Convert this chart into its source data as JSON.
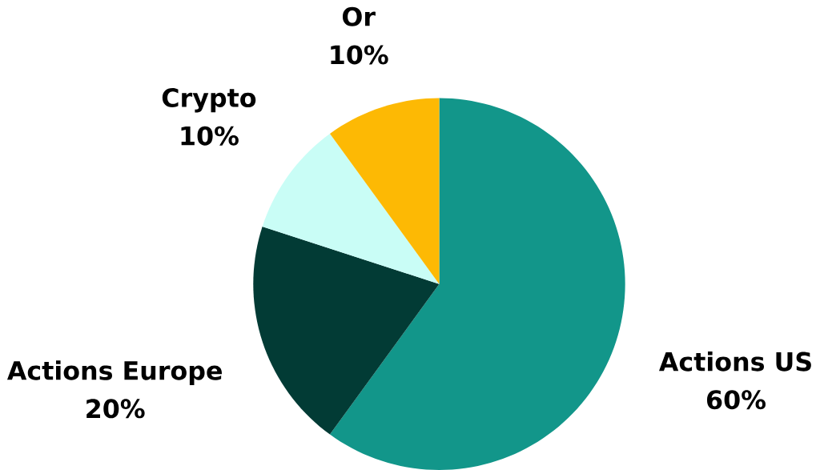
{
  "chart_data": {
    "type": "pie",
    "categories": [
      "Actions US",
      "Actions Europe",
      "Crypto",
      "Or"
    ],
    "values": [
      60,
      20,
      10,
      10
    ],
    "colors": [
      "#12968a",
      "#023b35",
      "#c9fdf6",
      "#fdb904"
    ],
    "value_labels": [
      "60%",
      "20%",
      "10%",
      "10%"
    ]
  }
}
